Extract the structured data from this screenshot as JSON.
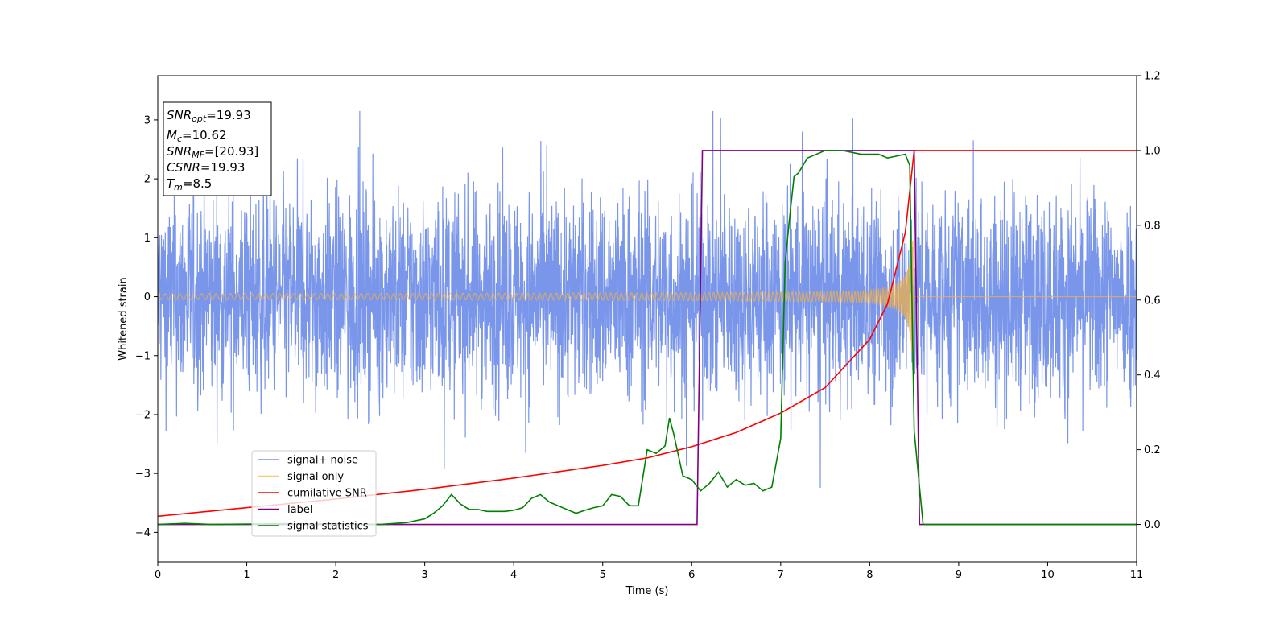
{
  "chart_data": {
    "type": "line",
    "xlabel": "Time (s)",
    "ylabel": "Whitened strain",
    "xlim": [
      0,
      11
    ],
    "ylim_left": [
      -4.5,
      3.75
    ],
    "ylim_right": [
      -0.1,
      1.2
    ],
    "x_ticks": [
      0,
      1,
      2,
      3,
      4,
      5,
      6,
      7,
      8,
      9,
      10,
      11
    ],
    "y_ticks_left": [
      -4,
      -3,
      -2,
      -1,
      0,
      1,
      2,
      3
    ],
    "y_ticks_left_labels": [
      "−4",
      "−3",
      "−2",
      "−1",
      "0",
      "1",
      "2",
      "3"
    ],
    "y_ticks_right": [
      0.0,
      0.2,
      0.4,
      0.6,
      0.8,
      1.0,
      1.2
    ],
    "y_ticks_right_labels": [
      "0.0",
      "0.2",
      "0.4",
      "0.6",
      "0.8",
      "1.0",
      "1.2"
    ],
    "grid": false,
    "legend_position": "lower-left",
    "annotation": {
      "snr_opt": {
        "main": "SNR",
        "sub": "opt",
        "value": "=19.93"
      },
      "mc": {
        "main": "M",
        "sub": "c",
        "value": "=10.62"
      },
      "snr_mf": {
        "main": "SNR",
        "sub": "MF",
        "value": "=[20.93]"
      },
      "csnr": {
        "main": "CSNR",
        "value": "=19.93"
      },
      "tm": {
        "main": "T",
        "sub": "m",
        "value": "=8.5"
      }
    },
    "series": [
      {
        "name": "signal+ noise",
        "color": "#4169e1",
        "axis": "left",
        "description": "noise-dominated strain, approx amplitude +/-1.5 with peaks to +/-3",
        "amplitude": 1.2
      },
      {
        "name": "signal only",
        "color": "#f5b041",
        "axis": "left",
        "description": "chirp waveform growing from 0.05 to 1.0 amplitude until merger at 8.5 s",
        "t_merger": 8.5
      },
      {
        "name": "cumilative SNR",
        "color": "#ff0000",
        "axis": "right",
        "x": [
          0,
          1,
          2,
          3,
          4,
          5,
          5.5,
          6,
          6.5,
          7,
          7.5,
          8,
          8.2,
          8.4,
          8.5,
          11
        ],
        "y": [
          0.022,
          0.045,
          0.068,
          0.094,
          0.124,
          0.158,
          0.178,
          0.208,
          0.246,
          0.298,
          0.366,
          0.495,
          0.59,
          0.78,
          1.0,
          1.0
        ]
      },
      {
        "name": "label",
        "color": "#800080",
        "axis": "right",
        "x": [
          0,
          6.06,
          6.12,
          8.5,
          8.56,
          11
        ],
        "y": [
          0,
          0,
          1,
          1,
          0,
          0
        ]
      },
      {
        "name": "signal statistics",
        "color": "#008000",
        "axis": "right",
        "x": [
          0,
          0.3,
          0.6,
          1.5,
          2.5,
          2.8,
          3.0,
          3.1,
          3.2,
          3.3,
          3.4,
          3.5,
          3.6,
          3.7,
          3.8,
          3.9,
          4.0,
          4.1,
          4.2,
          4.3,
          4.4,
          4.5,
          4.6,
          4.7,
          4.8,
          4.9,
          5.0,
          5.1,
          5.2,
          5.3,
          5.4,
          5.5,
          5.6,
          5.7,
          5.75,
          5.8,
          5.9,
          6.0,
          6.1,
          6.2,
          6.3,
          6.4,
          6.5,
          6.6,
          6.7,
          6.8,
          6.9,
          7.0,
          7.05,
          7.1,
          7.15,
          7.2,
          7.3,
          7.4,
          7.5,
          7.7,
          7.9,
          8.1,
          8.2,
          8.3,
          8.4,
          8.45,
          8.5,
          8.6,
          11
        ],
        "y": [
          0.0,
          0.003,
          0.0,
          0.002,
          0.0,
          0.005,
          0.015,
          0.03,
          0.05,
          0.08,
          0.055,
          0.04,
          0.04,
          0.035,
          0.035,
          0.035,
          0.038,
          0.045,
          0.07,
          0.08,
          0.06,
          0.05,
          0.04,
          0.03,
          0.038,
          0.045,
          0.05,
          0.08,
          0.075,
          0.05,
          0.05,
          0.2,
          0.19,
          0.21,
          0.285,
          0.24,
          0.13,
          0.12,
          0.09,
          0.11,
          0.14,
          0.1,
          0.12,
          0.105,
          0.11,
          0.09,
          0.1,
          0.23,
          0.7,
          0.82,
          0.93,
          0.94,
          0.98,
          0.99,
          1.0,
          1.0,
          0.99,
          0.99,
          0.98,
          0.985,
          0.99,
          0.96,
          0.25,
          0.0,
          0.0
        ]
      }
    ]
  }
}
